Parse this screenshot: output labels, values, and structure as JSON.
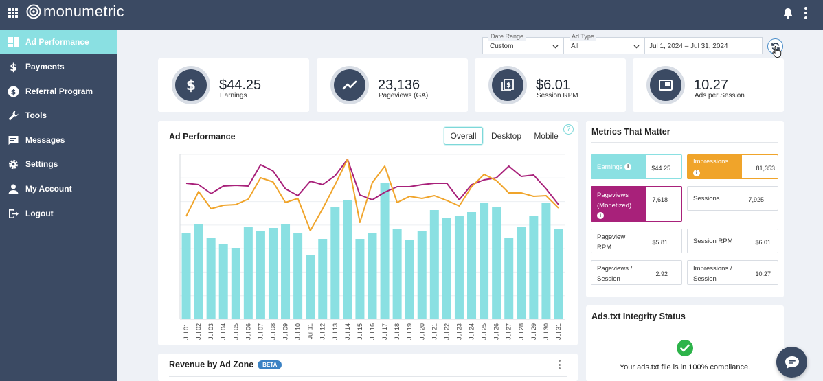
{
  "brand": {
    "name": "monumetric"
  },
  "sidebar": {
    "items": [
      {
        "label": "Ad Performance",
        "icon": "dashboard-icon",
        "active": true
      },
      {
        "label": "Payments",
        "icon": "dollar-icon"
      },
      {
        "label": "Referral Program",
        "icon": "referral-dollar-icon"
      },
      {
        "label": "Tools",
        "icon": "wrench-icon"
      },
      {
        "label": "Messages",
        "icon": "message-icon"
      },
      {
        "label": "Settings",
        "icon": "gear-icon"
      },
      {
        "label": "My Account",
        "icon": "user-icon"
      },
      {
        "label": "Logout",
        "icon": "logout-icon"
      }
    ]
  },
  "filters": {
    "date_range": {
      "label": "Date Range",
      "value": "Custom"
    },
    "ad_type": {
      "label": "Ad Type",
      "value": "All"
    },
    "date": {
      "value": "Jul 1, 2024 – Jul 31, 2024"
    }
  },
  "stats": [
    {
      "value": "$44.25",
      "label": "Earnings",
      "icon": "dollar-icon"
    },
    {
      "value": "23,136",
      "label": "Pageviews (GA)",
      "icon": "trend-line-icon"
    },
    {
      "value": "$6.01",
      "label": "Session RPM",
      "icon": "money-stack-icon"
    },
    {
      "value": "10.27",
      "label": "Ads per Session",
      "icon": "ad-window-icon"
    }
  ],
  "ad_performance": {
    "title": "Ad Performance",
    "tabs": [
      {
        "label": "Overall",
        "active": true
      },
      {
        "label": "Desktop"
      },
      {
        "label": "Mobile"
      }
    ],
    "help": "?"
  },
  "chart_data": {
    "type": "bar",
    "categories": [
      "Jul 01",
      "Jul 02",
      "Jul 03",
      "Jul 04",
      "Jul 05",
      "Jul 06",
      "Jul 07",
      "Jul 08",
      "Jul 09",
      "Jul 10",
      "Jul 11",
      "Jul 12",
      "Jul 13",
      "Jul 14",
      "Jul 15",
      "Jul 16",
      "Jul 17",
      "Jul 18",
      "Jul 19",
      "Jul 20",
      "Jul 21",
      "Jul 22",
      "Jul 23",
      "Jul 24",
      "Jul 25",
      "Jul 26",
      "Jul 27",
      "Jul 28",
      "Jul 29",
      "Jul 30",
      "Jul 31"
    ],
    "ylim": [
      0,
      240
    ],
    "grid": true,
    "series": [
      {
        "type": "bar",
        "color": "#8ae0e2",
        "values": [
          126,
          138,
          118,
          110,
          104,
          134,
          129,
          133,
          139,
          126,
          93,
          117,
          164,
          173,
          117,
          126,
          198,
          131,
          116,
          129,
          159,
          147,
          150,
          156,
          170,
          164,
          119,
          135,
          150,
          170,
          132
        ]
      },
      {
        "type": "line",
        "color": "#a8217a",
        "values": [
          198,
          196,
          183,
          194,
          195,
          194,
          225,
          216,
          190,
          180,
          201,
          196,
          209,
          233,
          181,
          174,
          185,
          193,
          193,
          196,
          198,
          198,
          174,
          196,
          203,
          206,
          223,
          208,
          210,
          190,
          167
        ]
      },
      {
        "type": "line",
        "color": "#f0a42a",
        "values": [
          150,
          186,
          161,
          166,
          167,
          175,
          206,
          200,
          170,
          176,
          129,
          161,
          196,
          233,
          141,
          199,
          223,
          170,
          179,
          176,
          180,
          173,
          165,
          193,
          211,
          202,
          184,
          184,
          179,
          180,
          162
        ]
      }
    ]
  },
  "metrics": {
    "title": "Metrics That Matter",
    "earnings": {
      "label": "Earnings",
      "value": "$44.25",
      "color": "#8ae0e2"
    },
    "impressions": {
      "label": "Impressions",
      "value": "81,353",
      "color": "#f0a42a"
    },
    "pageviews_monetized": {
      "label": "Pageviews (Monetized)",
      "value": "7,618",
      "color": "#a8217a"
    },
    "sessions": {
      "label": "Sessions",
      "value": "7,925"
    },
    "pageview_rpm": {
      "label": "Pageview RPM",
      "value": "$5.81"
    },
    "session_rpm": {
      "label": "Session RPM",
      "value": "$6.01"
    },
    "pageviews_per_session": {
      "label": "Pageviews / Session",
      "value": "2.92"
    },
    "impressions_per_session": {
      "label": "Impressions / Session",
      "value": "10.27"
    }
  },
  "ads_txt": {
    "title": "Ads.txt Integrity Status",
    "message": "Your ads.txt file is in 100% compliance."
  },
  "revenue": {
    "title": "Revenue by Ad Zone",
    "badge": "BETA"
  }
}
